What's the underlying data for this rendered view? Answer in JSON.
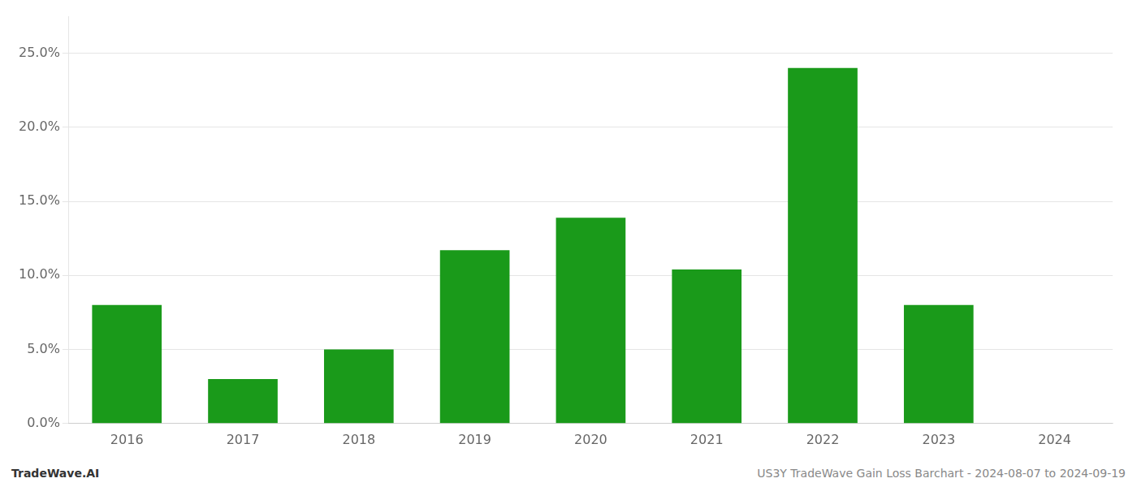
{
  "chart_data": {
    "type": "bar",
    "categories": [
      "2016",
      "2017",
      "2018",
      "2019",
      "2020",
      "2021",
      "2022",
      "2023",
      "2024"
    ],
    "values": [
      0.08,
      0.03,
      0.05,
      0.117,
      0.139,
      0.104,
      0.24,
      0.08,
      0.0
    ],
    "color": "#1a9a1a",
    "ylim": [
      0,
      0.275
    ],
    "yticks": [
      {
        "value": 0.0,
        "label": "0.0%"
      },
      {
        "value": 0.05,
        "label": "5.0%"
      },
      {
        "value": 0.1,
        "label": "10.0%"
      },
      {
        "value": 0.15,
        "label": "15.0%"
      },
      {
        "value": 0.2,
        "label": "20.0%"
      },
      {
        "value": 0.25,
        "label": "25.0%"
      }
    ],
    "grid": true,
    "annotations": [
      "TradeWave.AI",
      "US3Y TradeWave Gain Loss Barchart - 2024-08-07 to 2024-09-19"
    ]
  }
}
